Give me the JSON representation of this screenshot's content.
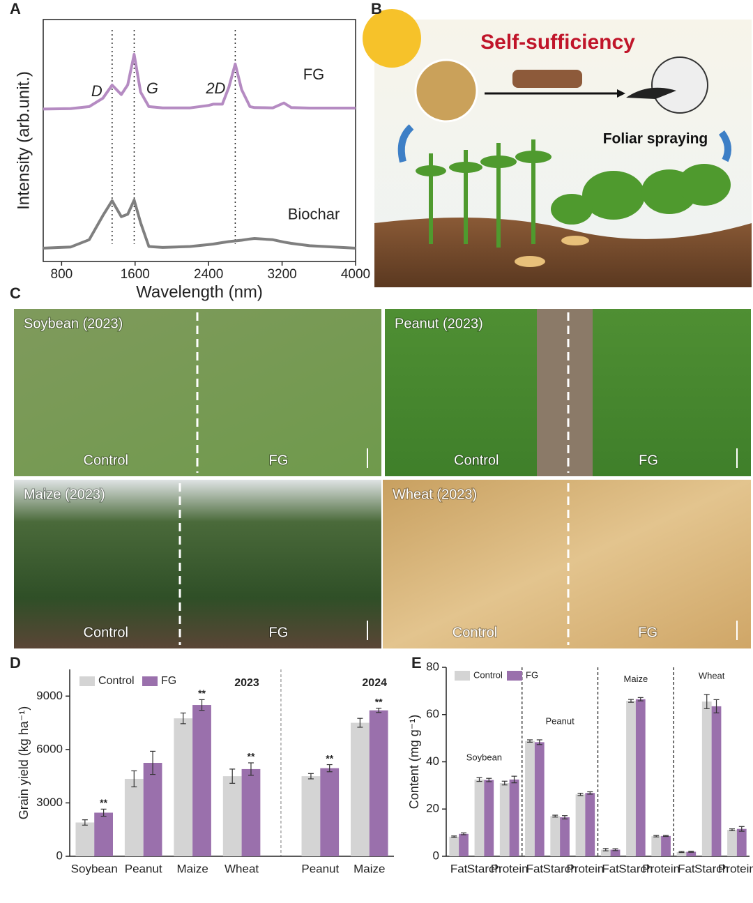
{
  "panel_labels": [
    "A",
    "B",
    "C",
    "D",
    "E"
  ],
  "illustration": {
    "title": "Self-sufficiency",
    "caption": "Foliar spraying"
  },
  "photos": [
    {
      "title": "Soybean (2023)",
      "left": "Control",
      "right": "FG"
    },
    {
      "title": "Peanut (2023)",
      "left": "Control",
      "right": "FG"
    },
    {
      "title": "Maize (2023)",
      "left": "Control",
      "right": "FG"
    },
    {
      "title": "Wheat (2023)",
      "left": "Control",
      "right": "FG"
    }
  ],
  "chart_data": [
    {
      "type": "line",
      "xlabel": "Wavelength (nm)",
      "ylabel": "Intensity (arb.unit.)",
      "x": [
        600,
        900,
        1100,
        1250,
        1350,
        1450,
        1520,
        1590,
        1660,
        1750,
        1900,
        2200,
        2400,
        2450,
        2550,
        2620,
        2690,
        2760,
        2850,
        2900,
        3100,
        3220,
        3300,
        3500,
        4000
      ],
      "series": [
        {
          "name": "FG",
          "color": "#b58bc2",
          "values": [
            6.3,
            6.32,
            6.4,
            6.75,
            7.29,
            6.9,
            7.3,
            8.56,
            7.0,
            6.4,
            6.35,
            6.35,
            6.45,
            6.5,
            6.5,
            7.2,
            8.16,
            7.1,
            6.4,
            6.36,
            6.35,
            6.55,
            6.36,
            6.34,
            6.34
          ]
        },
        {
          "name": "Biochar",
          "color": "#7f7f7f",
          "values": [
            0.55,
            0.6,
            0.9,
            1.9,
            2.51,
            1.85,
            1.95,
            2.54,
            1.6,
            0.62,
            0.58,
            0.62,
            0.7,
            0.72,
            0.78,
            0.82,
            0.85,
            0.88,
            0.93,
            0.95,
            0.9,
            0.8,
            0.75,
            0.65,
            0.55
          ]
        }
      ],
      "xlim": [
        600,
        4000
      ],
      "xticks": [
        800,
        1600,
        2400,
        3200,
        4000
      ],
      "ylim": [
        0,
        10
      ],
      "annotations": [
        {
          "text": "D",
          "x": 1350
        },
        {
          "text": "G",
          "x": 1590
        },
        {
          "text": "2D",
          "x": 2690
        }
      ]
    },
    {
      "type": "bar",
      "ylabel": "Grain yield (kg ha⁻¹)",
      "categories": [
        "Soybean",
        "Peanut",
        "Maize",
        "Wheat",
        "Peanut",
        "Maize"
      ],
      "groups": [
        {
          "label": "2023",
          "size": 4
        },
        {
          "label": "2024",
          "size": 2
        }
      ],
      "series": [
        {
          "name": "Control",
          "color": "#d4d4d4",
          "values": [
            1900,
            4350,
            7750,
            4500,
            4500,
            7500
          ],
          "errors": [
            150,
            450,
            300,
            400,
            150,
            250
          ]
        },
        {
          "name": "FG",
          "color": "#9a70ac",
          "values": [
            2450,
            5250,
            8500,
            4900,
            4950,
            8200
          ],
          "errors": [
            200,
            650,
            300,
            350,
            200,
            120
          ],
          "significance": [
            "**",
            null,
            "**",
            "**",
            "**",
            "**"
          ]
        }
      ],
      "ylim": [
        0,
        10500
      ],
      "yticks": [
        0,
        3000,
        6000,
        9000
      ],
      "legend": "upper left"
    },
    {
      "type": "bar",
      "ylabel": "Content (mg g⁻¹)",
      "categories": [
        "Fat",
        "Starch",
        "Protein",
        "Fat",
        "Starch",
        "Protein",
        "Fat",
        "Starch",
        "Protein",
        "Fat",
        "Starch",
        "Protein"
      ],
      "groups": [
        {
          "label": "Soybean",
          "size": 3
        },
        {
          "label": "Peanut",
          "size": 3
        },
        {
          "label": "Maize",
          "size": 3
        },
        {
          "label": "Wheat",
          "size": 3
        }
      ],
      "series": [
        {
          "name": "Control",
          "color": "#d4d4d4",
          "values": [
            8.3,
            32.5,
            31,
            48.8,
            17,
            26.2,
            2.8,
            65.8,
            8.5,
            1.8,
            65.5,
            11.2
          ],
          "errors": [
            0.3,
            0.8,
            0.8,
            0.5,
            0.4,
            0.5,
            0.5,
            0.6,
            0.3,
            0.2,
            3,
            0.4
          ]
        },
        {
          "name": "FG",
          "color": "#9a70ac",
          "values": [
            9.5,
            32.3,
            32.5,
            48.3,
            16.5,
            26.8,
            2.8,
            66.5,
            8.6,
            1.9,
            63.5,
            11.6
          ],
          "errors": [
            0.4,
            0.7,
            1.4,
            1,
            0.7,
            0.5,
            0.4,
            0.7,
            0.2,
            0.2,
            2.8,
            1
          ]
        }
      ],
      "ylim": [
        0,
        80
      ],
      "yticks": [
        0,
        20,
        40,
        60,
        80
      ],
      "legend": "upper left"
    }
  ]
}
